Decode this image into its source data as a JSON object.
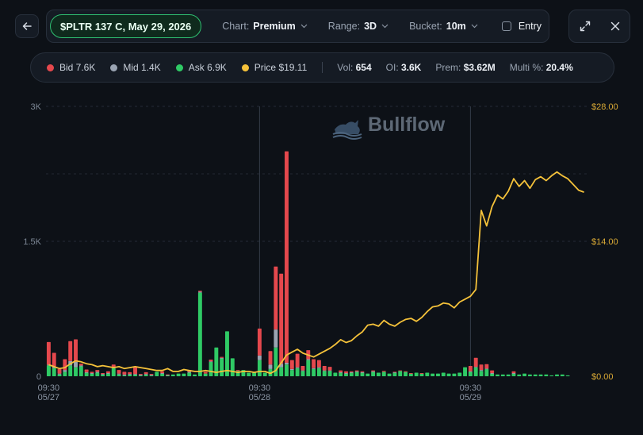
{
  "toolbar": {
    "ticker": "$PLTR 137 C, May 29, 2026",
    "chart_label": "Chart:",
    "chart_value": "Premium",
    "range_label": "Range:",
    "range_value": "3D",
    "bucket_label": "Bucket:",
    "bucket_value": "10m",
    "entry_label": "Entry",
    "entry_checked": false
  },
  "legend": {
    "items": [
      {
        "label": "Bid 7.6K",
        "color": "#e5484d"
      },
      {
        "label": "Mid 1.4K",
        "color": "#9aa4b2"
      },
      {
        "label": "Ask 6.9K",
        "color": "#2fca65"
      },
      {
        "label": "Price $19.11",
        "color": "#f5c23a"
      }
    ],
    "stats": [
      {
        "label": "Vol: ",
        "value": "654"
      },
      {
        "label": "OI: ",
        "value": "3.6K"
      },
      {
        "label": "Prem: ",
        "value": "$3.62M"
      },
      {
        "label": "Multi %: ",
        "value": "20.4%"
      }
    ]
  },
  "watermark": "Bullflow",
  "icons": {
    "back": "arrow-left-icon",
    "expand": "expand-icon",
    "close": "close-icon",
    "chevron": "chevron-down-icon",
    "logo": "bull-logo-icon"
  },
  "chart_data": {
    "type": "bar",
    "left_axis": {
      "ticks": [
        "3K",
        "1.5K",
        "0"
      ],
      "values": [
        3000,
        1500,
        0
      ],
      "ylim": [
        0,
        3000
      ]
    },
    "right_axis": {
      "ticks": [
        "$28.00",
        "$14.00",
        "$0.00"
      ],
      "values": [
        28,
        14,
        0
      ],
      "ylim": [
        0,
        28
      ]
    },
    "x_ticks": [
      {
        "time": "09:30",
        "date": "05/27",
        "index": 0
      },
      {
        "time": "09:30",
        "date": "05/28",
        "index": 39
      },
      {
        "time": "09:30",
        "date": "05/29",
        "index": 78
      }
    ],
    "series": [
      {
        "name": "Bid",
        "color": "#e5484d",
        "values": [
          250,
          150,
          50,
          120,
          220,
          250,
          20,
          30,
          15,
          20,
          10,
          20,
          30,
          40,
          30,
          20,
          80,
          10,
          20,
          10,
          0,
          20,
          5,
          0,
          0,
          0,
          20,
          0,
          10,
          20,
          20,
          0,
          10,
          0,
          0,
          10,
          0,
          0,
          0,
          300,
          0,
          150,
          700,
          1000,
          2350,
          100,
          150,
          50,
          100,
          100,
          80,
          50,
          40,
          0,
          20,
          20,
          10,
          10,
          10,
          0,
          10,
          0,
          10,
          0,
          5,
          5,
          5,
          5,
          0,
          5,
          0,
          0,
          0,
          0,
          0,
          0,
          0,
          0,
          60,
          100,
          60,
          50,
          30,
          0,
          0,
          0,
          20,
          0,
          0,
          0,
          0,
          0,
          0,
          0,
          0,
          0,
          0,
          0,
          0,
          0
        ]
      },
      {
        "name": "Mid",
        "color": "#9aa4b2",
        "values": [
          10,
          20,
          10,
          20,
          50,
          60,
          10,
          5,
          5,
          10,
          5,
          5,
          10,
          10,
          10,
          5,
          5,
          5,
          5,
          5,
          0,
          5,
          5,
          0,
          0,
          0,
          10,
          0,
          10,
          0,
          5,
          0,
          5,
          0,
          0,
          0,
          0,
          0,
          0,
          50,
          0,
          50,
          200,
          40,
          20,
          10,
          10,
          5,
          10,
          10,
          10,
          5,
          5,
          0,
          5,
          5,
          5,
          5,
          5,
          0,
          5,
          0,
          0,
          0,
          5,
          0,
          0,
          0,
          0,
          0,
          0,
          0,
          0,
          0,
          0,
          0,
          0,
          0,
          5,
          5,
          10,
          5,
          5,
          0,
          0,
          0,
          5,
          0,
          0,
          0,
          0,
          0,
          0,
          0,
          0,
          0,
          0,
          0,
          0,
          0
        ]
      },
      {
        "name": "Ask",
        "color": "#2fca65",
        "values": [
          120,
          90,
          20,
          50,
          120,
          100,
          110,
          40,
          30,
          40,
          20,
          30,
          90,
          20,
          10,
          20,
          20,
          10,
          20,
          10,
          50,
          30,
          10,
          20,
          30,
          30,
          40,
          20,
          930,
          30,
          160,
          320,
          200,
          500,
          200,
          60,
          70,
          40,
          40,
          180,
          40,
          80,
          320,
          100,
          130,
          70,
          90,
          60,
          180,
          80,
          90,
          60,
          60,
          40,
          40,
          30,
          40,
          50,
          40,
          30,
          50,
          40,
          50,
          30,
          40,
          60,
          50,
          30,
          40,
          30,
          40,
          30,
          30,
          40,
          30,
          30,
          40,
          100,
          50,
          100,
          60,
          80,
          30,
          20,
          20,
          20,
          30,
          20,
          30,
          20,
          20,
          20,
          20,
          10,
          20,
          20,
          10,
          0,
          0,
          0
        ]
      },
      {
        "name": "Price",
        "color": "#f5c23a",
        "type": "line",
        "values": [
          1.2,
          1.0,
          0.8,
          0.9,
          1.3,
          1.6,
          1.5,
          1.3,
          1.2,
          1.0,
          1.1,
          1.0,
          0.9,
          1.0,
          0.8,
          0.9,
          1.0,
          0.9,
          0.8,
          0.7,
          0.6,
          0.6,
          0.8,
          0.5,
          0.5,
          0.7,
          0.6,
          0.5,
          0.5,
          0.6,
          0.5,
          0.4,
          0.5,
          0.6,
          0.5,
          0.4,
          0.5,
          0.5,
          0.4,
          0.5,
          0.5,
          0.3,
          0.6,
          1.4,
          2.2,
          2.5,
          2.8,
          2.4,
          2.2,
          2.0,
          2.3,
          2.6,
          2.9,
          3.3,
          3.8,
          3.5,
          3.7,
          4.2,
          4.6,
          5.3,
          5.4,
          5.2,
          5.8,
          5.4,
          5.2,
          5.6,
          5.9,
          6.0,
          5.7,
          6.1,
          6.7,
          7.2,
          7.3,
          7.6,
          7.5,
          7.1,
          7.7,
          8.0,
          8.3,
          9.0,
          17.2,
          15.6,
          17.6,
          18.8,
          18.4,
          19.2,
          20.5,
          19.7,
          20.3,
          19.5,
          20.4,
          20.7,
          20.3,
          20.8,
          21.2,
          20.8,
          20.5,
          19.9,
          19.3,
          19.1
        ]
      }
    ]
  }
}
